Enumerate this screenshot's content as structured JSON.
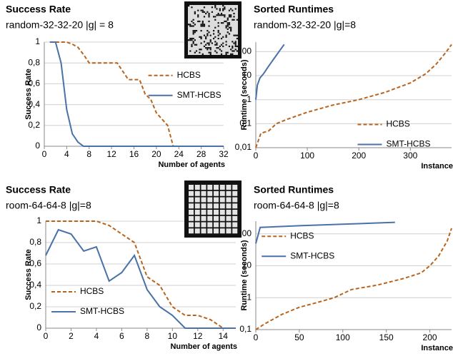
{
  "chart_data": [
    {
      "type": "line",
      "title": "Success Rate",
      "subtitle": "random-32-32-20 |g| = 8",
      "x_label": "Number of agents",
      "y_label": "Success Rate",
      "x": [
        1,
        2,
        3,
        4,
        5,
        6,
        7,
        8,
        9,
        10,
        11,
        12,
        13,
        14,
        15,
        16,
        17,
        18,
        19,
        20,
        21,
        22,
        23,
        24,
        25,
        26,
        27,
        28,
        29,
        30,
        31,
        32
      ],
      "series": [
        {
          "name": "HCBS",
          "color": "#b8641e",
          "style": "dashed",
          "values": [
            1,
            1,
            1,
            1,
            0.98,
            0.95,
            0.88,
            0.8,
            0.8,
            0.8,
            0.8,
            0.8,
            0.8,
            0.72,
            0.64,
            0.64,
            0.64,
            0.5,
            0.45,
            0.32,
            0.26,
            0.2,
            0,
            0,
            0,
            0,
            0,
            0,
            0,
            0,
            0,
            0
          ]
        },
        {
          "name": "SMT-HCBS",
          "color": "#4a72a8",
          "style": "solid",
          "values": [
            1,
            1,
            0.8,
            0.35,
            0.12,
            0.04,
            0,
            0,
            0,
            0,
            0,
            0,
            0,
            0,
            0,
            0,
            0,
            0,
            0,
            0,
            0,
            0,
            0,
            0,
            0,
            0,
            0,
            0,
            0,
            0,
            0,
            0
          ]
        }
      ],
      "xlim": [
        0,
        32
      ],
      "xticks": [
        0,
        4,
        8,
        12,
        16,
        20,
        24,
        28,
        32
      ],
      "ylim": [
        0,
        1
      ],
      "yticks": [
        0,
        {
          "value": 0.2,
          "label": "0,2"
        },
        {
          "value": 0.4,
          "label": "0,4"
        },
        {
          "value": 0.6,
          "label": "0,6"
        },
        {
          "value": 0.8,
          "label": "0,8"
        },
        1
      ],
      "grid": true,
      "legend": "center right"
    },
    {
      "type": "line",
      "title": "Sorted Runtimes",
      "subtitle": "random-32-32-20 |g|=8",
      "x_label": "Instance",
      "y_label": "Runtime (seconds)",
      "log_y": true,
      "series": [
        {
          "name": "HCBS",
          "color": "#b8641e",
          "style": "dashed",
          "x": [
            0,
            5,
            10,
            25,
            40,
            60,
            100,
            150,
            200,
            250,
            300,
            330,
            350,
            370,
            380
          ],
          "values": [
            0.01,
            0.02,
            0.04,
            0.05,
            0.1,
            0.15,
            0.3,
            0.6,
            1,
            2,
            5,
            12,
            30,
            100,
            200
          ]
        },
        {
          "name": "SMT-HCBS",
          "color": "#4a72a8",
          "style": "solid",
          "x": [
            0,
            3,
            8,
            15,
            25,
            35,
            45,
            55
          ],
          "values": [
            1,
            4,
            8,
            12,
            25,
            50,
            100,
            200
          ]
        }
      ],
      "xlim": [
        0,
        380
      ],
      "xticks": [
        0,
        100,
        200,
        300
      ],
      "ylim": [
        0.01,
        250
      ],
      "yticks": [
        {
          "value": 0.01,
          "label": "0,01"
        },
        {
          "value": 0.1,
          "label": "0,1"
        },
        1,
        10,
        100
      ],
      "grid": true,
      "legend": "lower right"
    },
    {
      "type": "line",
      "title": "Success Rate",
      "subtitle": "room-64-64-8 |g|=8",
      "x_label": "Number of agents",
      "y_label": "Success Rate",
      "x": [
        0,
        1,
        2,
        3,
        4,
        5,
        6,
        7,
        8,
        9,
        10,
        11,
        12,
        13,
        14,
        15
      ],
      "series": [
        {
          "name": "HCBS",
          "color": "#b8641e",
          "style": "dashed",
          "values": [
            1,
            1,
            1,
            1,
            1,
            0.96,
            0.88,
            0.8,
            0.48,
            0.4,
            0.2,
            0.12,
            0.12,
            0.08,
            0,
            0
          ]
        },
        {
          "name": "SMT-HCBS",
          "color": "#4a72a8",
          "style": "solid",
          "values": [
            0.68,
            0.92,
            0.88,
            0.72,
            0.76,
            0.44,
            0.52,
            0.68,
            0.36,
            0.2,
            0.12,
            0,
            0,
            0,
            0,
            0
          ]
        }
      ],
      "xlim": [
        0,
        15
      ],
      "xticks": [
        0,
        2,
        4,
        6,
        8,
        10,
        12,
        14
      ],
      "ylim": [
        0,
        1
      ],
      "yticks": [
        0,
        {
          "value": 0.2,
          "label": "0,2"
        },
        {
          "value": 0.4,
          "label": "0,4"
        },
        {
          "value": 0.6,
          "label": "0,6"
        },
        {
          "value": 0.8,
          "label": "0,8"
        },
        1
      ],
      "grid": true,
      "legend": "lower left"
    },
    {
      "type": "line",
      "title": "Sorted Runtimes",
      "subtitle": "room-64-64-8 |g|=8",
      "x_label": "Instance",
      "y_label": "Runtime (seconds)",
      "log_y": true,
      "series": [
        {
          "name": "HCBS",
          "color": "#b8641e",
          "style": "dashed",
          "x": [
            0,
            10,
            30,
            50,
            70,
            90,
            110,
            140,
            170,
            190,
            200,
            210,
            220,
            225
          ],
          "values": [
            0.1,
            0.15,
            0.3,
            0.5,
            0.7,
            1,
            1.8,
            2.5,
            4,
            6,
            10,
            20,
            60,
            150
          ]
        },
        {
          "name": "SMT-HCBS",
          "color": "#4a72a8",
          "style": "solid",
          "x": [
            0,
            3,
            5,
            50,
            100,
            160
          ],
          "values": [
            50,
            100,
            160,
            180,
            200,
            230
          ]
        }
      ],
      "xlim": [
        0,
        225
      ],
      "xticks": [
        0,
        50,
        100,
        150,
        200
      ],
      "ylim": [
        0.1,
        250
      ],
      "yticks": [
        {
          "value": 0.1,
          "label": "0,1"
        },
        1,
        10,
        100
      ],
      "grid": true,
      "legend": "upper left"
    }
  ]
}
